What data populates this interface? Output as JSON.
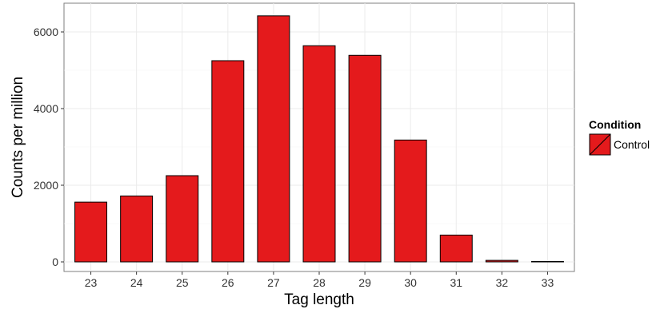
{
  "chart_data": {
    "type": "bar",
    "title": "",
    "xlabel": "Tag length",
    "ylabel": "Counts per million",
    "categories": [
      "23",
      "24",
      "25",
      "26",
      "27",
      "28",
      "29",
      "30",
      "31",
      "32",
      "33"
    ],
    "series": [
      {
        "name": "Control",
        "color": "#E41A1C",
        "values": [
          1560,
          1720,
          2250,
          5250,
          6420,
          5640,
          5390,
          3180,
          700,
          40,
          10
        ]
      }
    ],
    "ylim": [
      -250,
      6750
    ],
    "yticks": [
      0,
      2000,
      4000,
      6000
    ],
    "grid": true,
    "legend": {
      "title": "Condition",
      "position": "right",
      "entries": [
        "Control"
      ]
    }
  }
}
